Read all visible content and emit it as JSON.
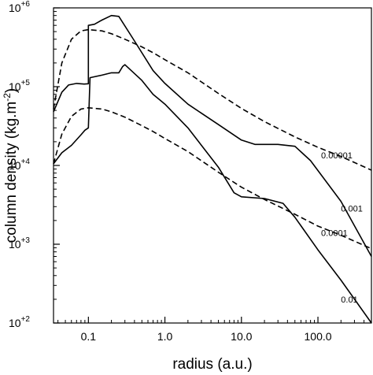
{
  "chart_data": {
    "type": "line",
    "title": "",
    "xlabel": "radius (a.u.)",
    "ylabel": "column density (kg.m^-2)",
    "ylabel_base": "column density (kg.m",
    "ylabel_exp": "-2",
    "ylabel_close": ")",
    "xscale": "log",
    "yscale": "log",
    "xlim": [
      0.035,
      500
    ],
    "ylim": [
      100,
      1000000
    ],
    "grid": false,
    "legend": "none",
    "colors": {
      "line": "#000000",
      "frame": "#000000",
      "background": "#ffffff"
    },
    "xticks": [
      {
        "value": 0.1,
        "label": "0.1"
      },
      {
        "value": 1,
        "label": "1.0"
      },
      {
        "value": 10,
        "label": "10.0"
      },
      {
        "value": 100,
        "label": "100.0"
      }
    ],
    "yticks": [
      {
        "value": 100,
        "base": "10",
        "exp": "+2"
      },
      {
        "value": 1000,
        "base": "10",
        "exp": "+3"
      },
      {
        "value": 10000,
        "base": "10",
        "exp": "+4"
      },
      {
        "value": 100000,
        "base": "10",
        "exp": "+5"
      },
      {
        "value": 1000000,
        "base": "10",
        "exp": "+6"
      }
    ],
    "series": [
      {
        "style": "dashed",
        "points": [
          [
            0.035,
            52000
          ],
          [
            0.045,
            200000
          ],
          [
            0.06,
            400000
          ],
          [
            0.08,
            510000
          ],
          [
            0.1,
            530000
          ],
          [
            0.15,
            510000
          ],
          [
            0.2,
            470000
          ],
          [
            0.3,
            400000
          ],
          [
            0.5,
            320000
          ],
          [
            0.7,
            270000
          ],
          [
            1,
            220000
          ],
          [
            2,
            150000
          ],
          [
            5,
            82000
          ],
          [
            10,
            53000
          ],
          [
            20,
            36000
          ],
          [
            50,
            23000
          ],
          [
            100,
            17000
          ],
          [
            200,
            13000
          ],
          [
            500,
            8700
          ]
        ]
      },
      {
        "style": "dashed",
        "points": [
          [
            0.035,
            10500
          ],
          [
            0.045,
            25000
          ],
          [
            0.06,
            42000
          ],
          [
            0.08,
            52000
          ],
          [
            0.1,
            54000
          ],
          [
            0.15,
            52000
          ],
          [
            0.2,
            48000
          ],
          [
            0.3,
            41000
          ],
          [
            0.5,
            32000
          ],
          [
            0.7,
            27000
          ],
          [
            1,
            22000
          ],
          [
            2,
            15000
          ],
          [
            5,
            8200
          ],
          [
            10,
            5300
          ],
          [
            20,
            3700
          ],
          [
            50,
            2400
          ],
          [
            100,
            1700
          ],
          [
            200,
            1300
          ],
          [
            500,
            880
          ]
        ]
      },
      {
        "style": "solid",
        "points": [
          [
            0.035,
            48000
          ],
          [
            0.045,
            85000
          ],
          [
            0.055,
            105000
          ],
          [
            0.07,
            110000
          ],
          [
            0.088,
            108000
          ],
          [
            0.1,
            109000
          ],
          [
            0.1,
            600000
          ],
          [
            0.12,
            620000
          ],
          [
            0.15,
            700000
          ],
          [
            0.2,
            800000
          ],
          [
            0.25,
            780000
          ],
          [
            0.4,
            380000
          ],
          [
            0.7,
            160000
          ],
          [
            1,
            110000
          ],
          [
            2,
            60000
          ],
          [
            5,
            33000
          ],
          [
            10,
            21000
          ],
          [
            15,
            18500
          ],
          [
            30,
            18500
          ],
          [
            50,
            17500
          ],
          [
            80,
            11500
          ],
          [
            200,
            3500
          ],
          [
            500,
            700
          ]
        ]
      },
      {
        "style": "solid",
        "points": [
          [
            0.035,
            10500
          ],
          [
            0.045,
            14500
          ],
          [
            0.06,
            18000
          ],
          [
            0.08,
            24500
          ],
          [
            0.09,
            28000
          ],
          [
            0.1,
            30000
          ],
          [
            0.105,
            130000
          ],
          [
            0.15,
            140000
          ],
          [
            0.2,
            150000
          ],
          [
            0.25,
            150000
          ],
          [
            0.28,
            180000
          ],
          [
            0.3,
            190000
          ],
          [
            0.5,
            120000
          ],
          [
            0.7,
            80000
          ],
          [
            1,
            60000
          ],
          [
            2,
            30000
          ],
          [
            5,
            9500
          ],
          [
            8,
            4500
          ],
          [
            10,
            4000
          ],
          [
            20,
            3800
          ],
          [
            35,
            3300
          ],
          [
            50,
            2200
          ],
          [
            100,
            850
          ],
          [
            200,
            350
          ],
          [
            500,
            100
          ]
        ]
      }
    ],
    "curve_labels": [
      {
        "text": "0.00001",
        "x": 110,
        "y": 13500
      },
      {
        "text": "0.001",
        "x": 200,
        "y": 2850
      },
      {
        "text": "0.0001",
        "x": 110,
        "y": 1400
      },
      {
        "text": "0.01",
        "x": 200,
        "y": 200
      }
    ]
  }
}
